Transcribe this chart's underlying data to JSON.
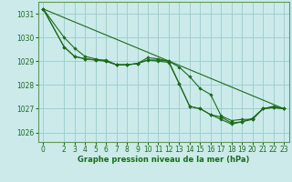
{
  "background_color": "#cceaea",
  "grid_color": "#99cccc",
  "line_color": "#1a6b1a",
  "marker_color": "#1a6b1a",
  "xlabel": "Graphe pression niveau de la mer (hPa)",
  "xlabel_fontsize": 6.0,
  "tick_fontsize": 5.5,
  "ylim": [
    1025.6,
    1031.5
  ],
  "xlim": [
    -0.5,
    23.5
  ],
  "yticks": [
    1026,
    1027,
    1028,
    1029,
    1030,
    1031
  ],
  "xticks": [
    0,
    2,
    3,
    4,
    5,
    6,
    7,
    8,
    9,
    10,
    11,
    12,
    13,
    14,
    15,
    16,
    17,
    18,
    19,
    20,
    21,
    22,
    23
  ],
  "series": [
    {
      "x": [
        0,
        2,
        3,
        4,
        5,
        6,
        7,
        8,
        9,
        10,
        11,
        12,
        13,
        14,
        15,
        16,
        17,
        18,
        19,
        20,
        21,
        22,
        23
      ],
      "y": [
        1031.2,
        1030.0,
        1029.55,
        1029.2,
        1029.1,
        1029.0,
        1028.85,
        1028.85,
        1028.9,
        1029.05,
        1029.05,
        1029.0,
        1028.75,
        1028.35,
        1027.85,
        1027.6,
        1026.7,
        1026.5,
        1026.55,
        1026.55,
        1027.0,
        1027.1,
        1027.0
      ]
    },
    {
      "x": [
        0,
        23
      ],
      "y": [
        1031.2,
        1027.0
      ]
    },
    {
      "x": [
        0,
        2,
        3,
        4,
        5,
        6,
        7,
        8,
        9,
        10,
        11,
        12,
        13,
        14,
        15,
        16,
        17,
        18,
        19,
        20,
        21,
        22,
        23
      ],
      "y": [
        1031.2,
        1029.6,
        1029.2,
        1029.1,
        1029.05,
        1029.05,
        1028.85,
        1028.85,
        1028.9,
        1029.15,
        1029.1,
        1029.0,
        1028.05,
        1027.1,
        1027.0,
        1026.75,
        1026.65,
        1026.4,
        1026.45,
        1026.55,
        1027.0,
        1027.05,
        1027.0
      ]
    },
    {
      "x": [
        0,
        2,
        3,
        4,
        5,
        6,
        7,
        8,
        9,
        10,
        11,
        12,
        13,
        14,
        15,
        16,
        17,
        18,
        19,
        20,
        21,
        22,
        23
      ],
      "y": [
        1031.2,
        1029.6,
        1029.2,
        1029.1,
        1029.05,
        1029.0,
        1028.85,
        1028.85,
        1028.9,
        1029.05,
        1029.0,
        1028.95,
        1028.05,
        1027.1,
        1027.0,
        1026.75,
        1026.55,
        1026.35,
        1026.45,
        1026.6,
        1027.0,
        1027.05,
        1027.0
      ]
    }
  ]
}
